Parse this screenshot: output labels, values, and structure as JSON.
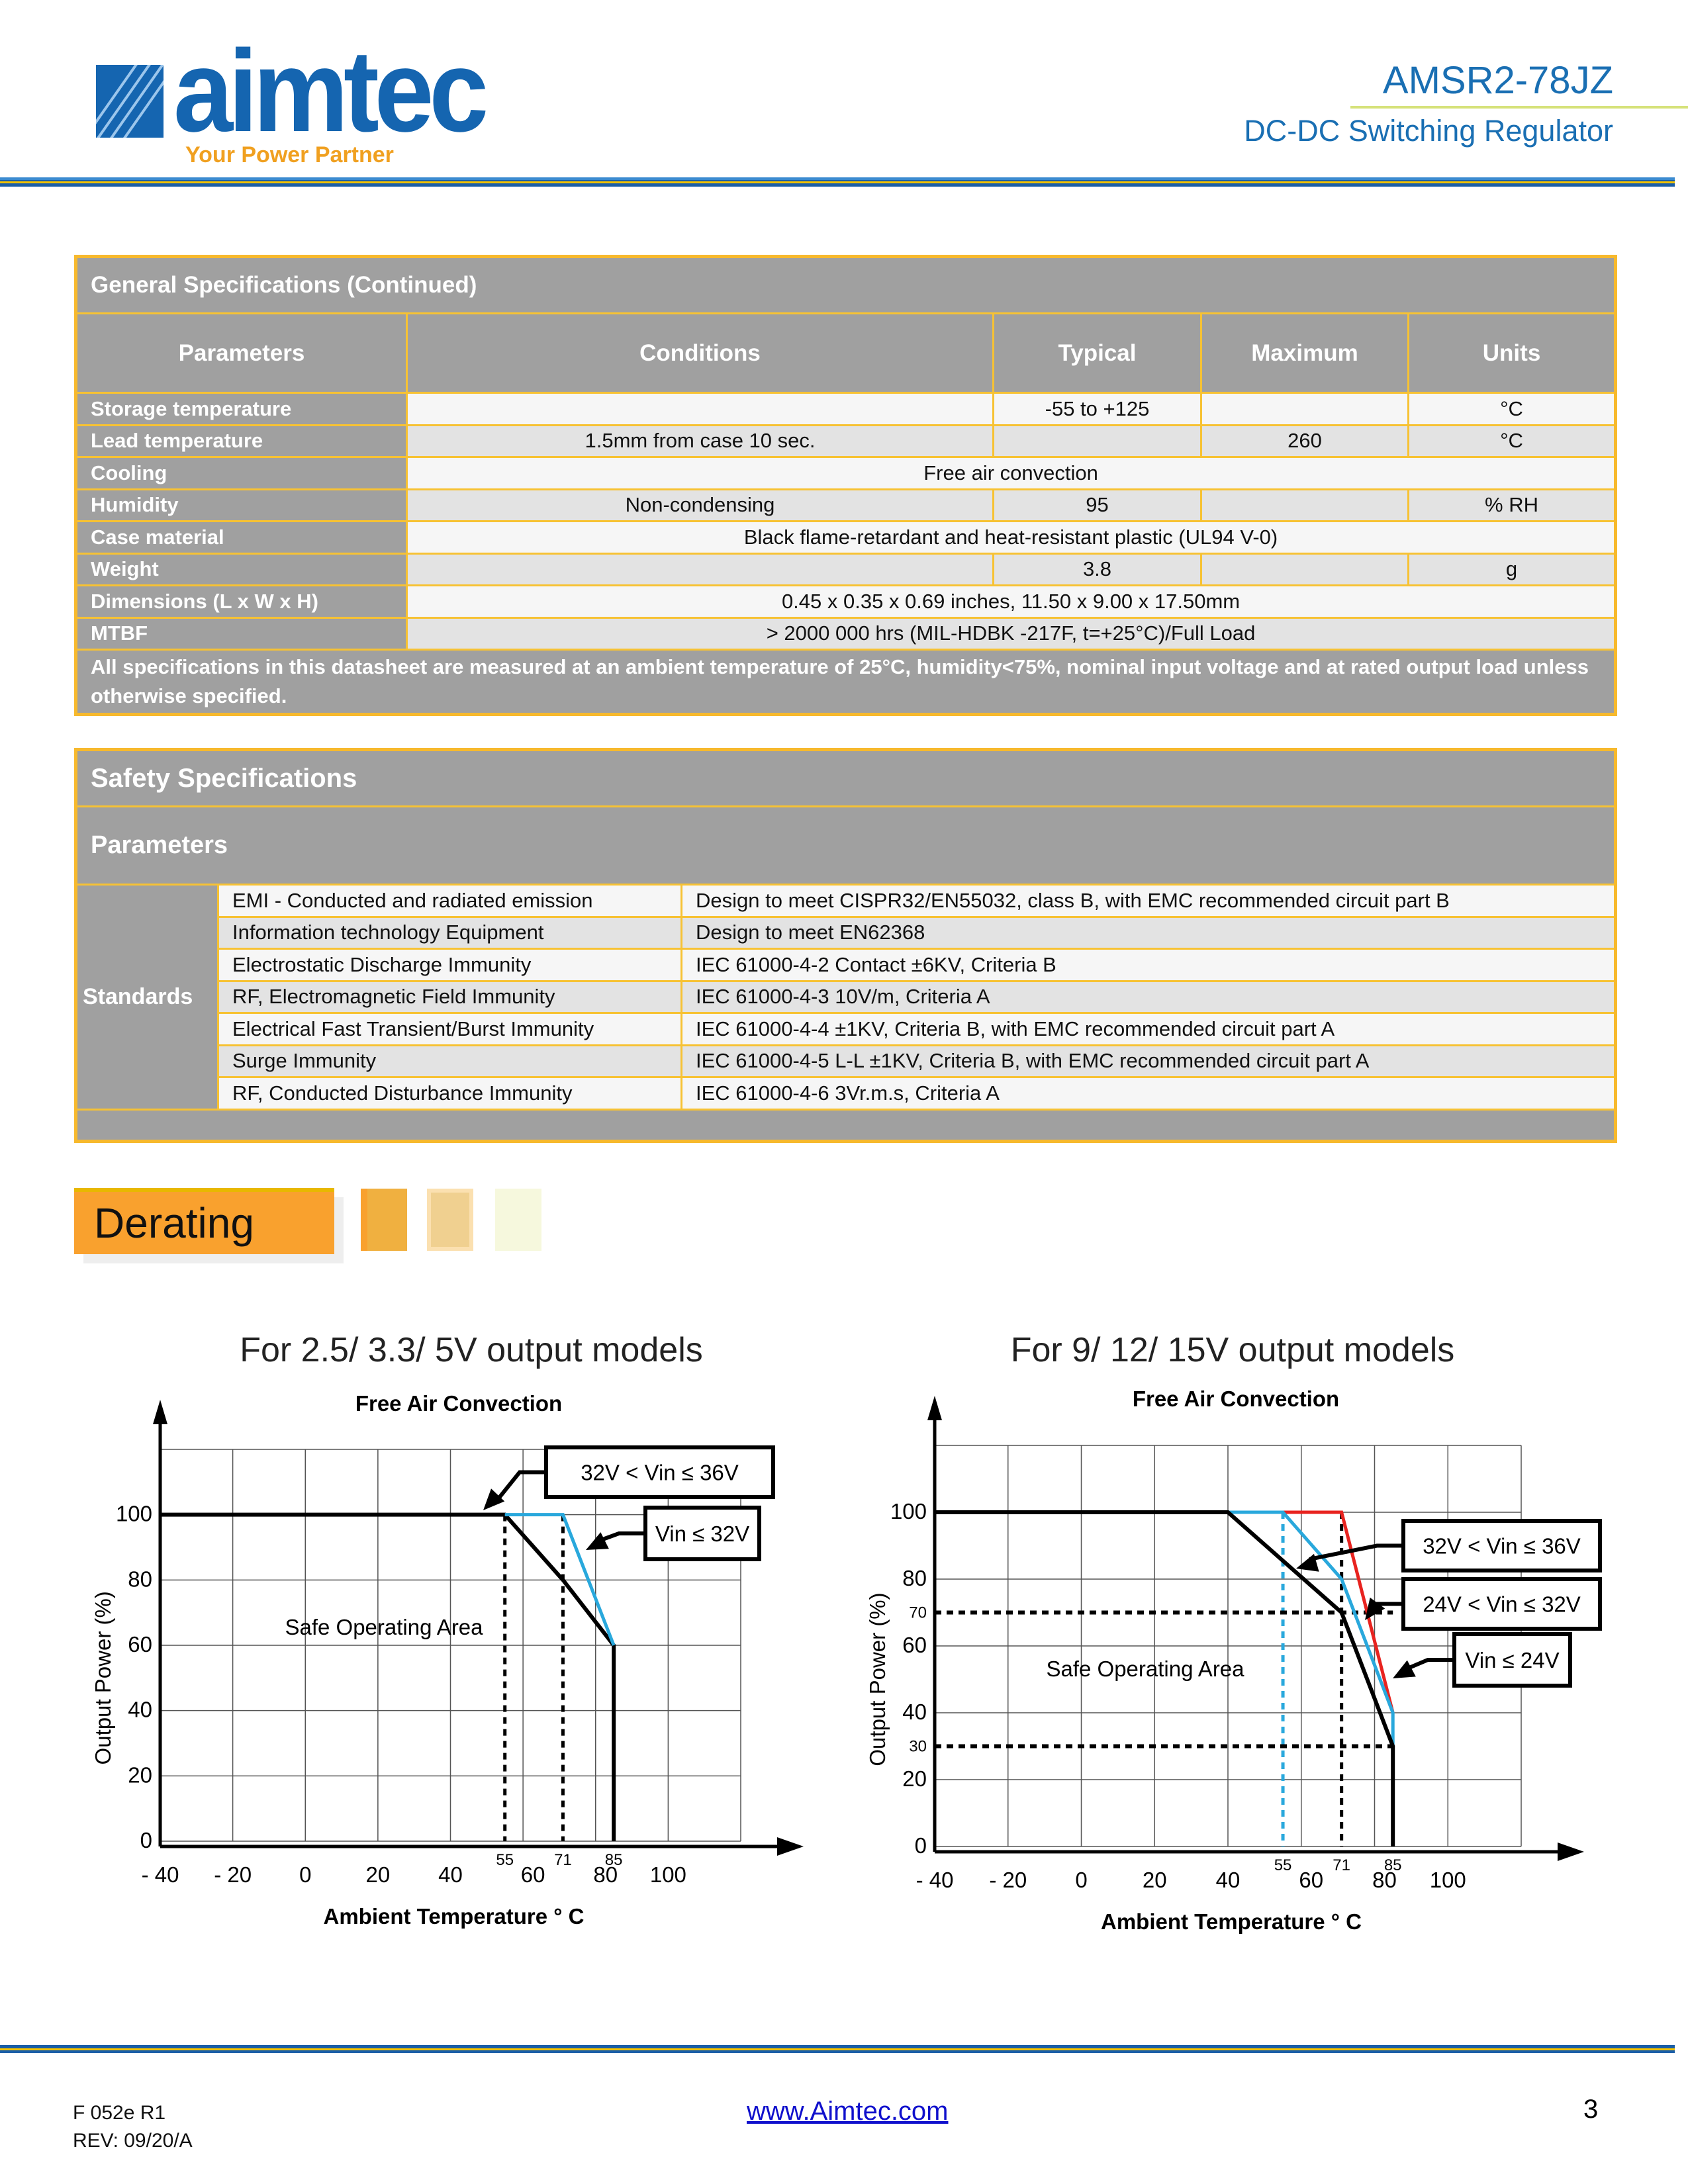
{
  "header": {
    "logo_text": "aimtec",
    "tagline": "Your Power Partner",
    "model": "AMSR2-78JZ",
    "subtitle": "DC-DC Switching Regulator"
  },
  "general": {
    "title": "General Specifications (Continued)",
    "columns": [
      "Parameters",
      "Conditions",
      "Typical",
      "Maximum",
      "Units"
    ],
    "rows": [
      {
        "param": "Storage temperature",
        "cond": "",
        "typ": "-55 to +125",
        "max": "",
        "units": "°C"
      },
      {
        "param": "Lead temperature",
        "cond": "1.5mm from case 10 sec.",
        "typ": "",
        "max": "260",
        "units": "°C"
      },
      {
        "param": "Cooling",
        "span": "Free air convection"
      },
      {
        "param": "Humidity",
        "cond": "Non-condensing",
        "typ": "95",
        "max": "",
        "units": "% RH"
      },
      {
        "param": "Case material",
        "span": "Black flame-retardant and heat-resistant plastic (UL94 V-0)"
      },
      {
        "param": "Weight",
        "cond": "",
        "typ": "3.8",
        "max": "",
        "units": "g"
      },
      {
        "param": "Dimensions (L x W x H)",
        "span": "0.45 x 0.35 x 0.69 inches, 11.50 x 9.00 x 17.50mm"
      },
      {
        "param": "MTBF",
        "span": "> 2000 000 hrs (MIL-HDBK -217F, t=+25°C)/Full Load"
      }
    ],
    "note": "All specifications in this datasheet are measured at an ambient temperature of 25°C, humidity<75%, nominal input voltage and at rated output load unless otherwise specified."
  },
  "safety": {
    "title": "Safety Specifications",
    "params_label": "Parameters",
    "group": "Standards",
    "rows": [
      {
        "item": "EMI - Conducted and radiated emission",
        "value": "Design to meet CISPR32/EN55032, class B, with EMC recommended circuit part B"
      },
      {
        "item": "Information technology Equipment",
        "value": "Design to meet EN62368"
      },
      {
        "item": "Electrostatic Discharge Immunity",
        "value": "IEC 61000-4-2 Contact ±6KV, Criteria B"
      },
      {
        "item": "RF, Electromagnetic Field Immunity",
        "value": "IEC 61000-4-3 10V/m, Criteria A"
      },
      {
        "item": "Electrical Fast Transient/Burst Immunity",
        "value": "IEC 61000-4-4 ±1KV, Criteria B, with EMC recommended circuit part A"
      },
      {
        "item": "Surge Immunity",
        "value": "IEC 61000-4-5 L-L ±1KV, Criteria B, with EMC recommended circuit part A"
      },
      {
        "item": "RF, Conducted Disturbance Immunity",
        "value": "IEC 61000-4-6 3Vr.m.s, Criteria A"
      }
    ]
  },
  "derating": {
    "label": "Derating"
  },
  "chart_data": [
    {
      "type": "line",
      "heading": "For 2.5/ 3.3/ 5V output  models",
      "title": "Free Air Convection",
      "xlabel": "Ambient Temperature  ° C",
      "ylabel": "Output Power (%)",
      "xlim": [
        -40,
        120
      ],
      "ylim": [
        0,
        120
      ],
      "grid": true,
      "xticks": [
        "- 40",
        "- 20",
        "0",
        "20",
        "40",
        "60",
        "80",
        "100"
      ],
      "xtick_values": [
        -40,
        -20,
        0,
        20,
        40,
        60,
        80,
        100
      ],
      "xticks_minor": [
        "55",
        "71",
        "85"
      ],
      "xtick_minor_values": [
        55,
        71,
        85
      ],
      "yticks": [
        "0",
        "20",
        "40",
        "60",
        "80",
        "100"
      ],
      "ytick_values": [
        0,
        20,
        40,
        60,
        80,
        100
      ],
      "region_label": "Safe Operating Area",
      "series": [
        {
          "name": "32V < Vin ≤ 36V",
          "color": "#000000",
          "points": [
            [
              -40,
              100
            ],
            [
              55,
              100
            ],
            [
              71,
              80
            ],
            [
              85,
              60
            ],
            [
              85,
              0
            ]
          ]
        },
        {
          "name": "Vin ≤ 32V",
          "color": "#29a8dc",
          "points": [
            [
              55,
              100
            ],
            [
              71,
              100
            ],
            [
              85,
              60
            ]
          ]
        }
      ],
      "guides": [
        {
          "x": 55,
          "color": "#000000"
        },
        {
          "x": 71,
          "color": "#000000"
        }
      ]
    },
    {
      "type": "line",
      "heading": "For 9/ 12/ 15V output models",
      "title": "Free Air Convection",
      "xlabel": "Ambient Temperature  ° C",
      "ylabel": "Output Power (%)",
      "xlim": [
        -40,
        120
      ],
      "ylim": [
        0,
        120
      ],
      "grid": true,
      "xticks": [
        "- 40",
        "- 20",
        "0",
        "20",
        "40",
        "60",
        "80",
        "100"
      ],
      "xtick_values": [
        -40,
        -20,
        0,
        20,
        40,
        60,
        80,
        100
      ],
      "xticks_minor": [
        "55",
        "71",
        "85"
      ],
      "xtick_minor_values": [
        55,
        71,
        85
      ],
      "yticks": [
        "0",
        "20",
        "40",
        "60",
        "80",
        "100"
      ],
      "ytick_values": [
        0,
        20,
        40,
        60,
        80,
        100
      ],
      "yticks_minor": [
        "30",
        "70"
      ],
      "ytick_minor_values": [
        30,
        70
      ],
      "region_label": "Safe Operating Area",
      "series": [
        {
          "name": "Vin ≤ 24V",
          "color": "#e8231f",
          "points": [
            [
              55,
              100
            ],
            [
              71,
              100
            ],
            [
              85,
              40
            ]
          ]
        },
        {
          "name": "24V < Vin ≤ 32V",
          "color": "#29a8dc",
          "points": [
            [
              40,
              100
            ],
            [
              55,
              100
            ],
            [
              71,
              80
            ],
            [
              85,
              40
            ],
            [
              85,
              30
            ]
          ]
        },
        {
          "name": "32V < Vin ≤ 36V",
          "color": "#000000",
          "points": [
            [
              -40,
              100
            ],
            [
              40,
              100
            ],
            [
              71,
              70
            ],
            [
              85,
              30
            ],
            [
              85,
              0
            ]
          ]
        }
      ],
      "guides": [
        {
          "x": 55,
          "color": "#29a8dc"
        },
        {
          "x": 71,
          "color": "#000000"
        },
        {
          "y": 70,
          "color": "#000000"
        },
        {
          "y": 30,
          "color": "#000000"
        }
      ]
    }
  ],
  "footer": {
    "form": "F 052e R1",
    "rev": "REV: 09/20/A",
    "url": "www.Aimtec.com",
    "page": "3"
  }
}
